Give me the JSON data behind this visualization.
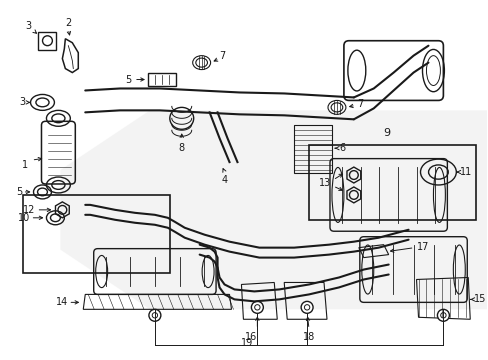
{
  "bg_color": "#ffffff",
  "fig_width": 4.89,
  "fig_height": 3.6,
  "dpi": 100,
  "line_color": "#1a1a1a",
  "shade_color": "#e8e8e8",
  "label_fontsize": 7,
  "lw_main": 1.0
}
